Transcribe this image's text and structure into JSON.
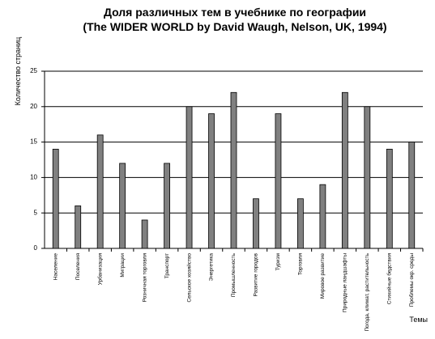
{
  "chart_data": {
    "type": "bar",
    "title": "Доля различных тем в учебнике по географии",
    "subtitle": "(The WIDER WORLD by David Waugh, Nelson, UK, 1994)",
    "y_label": "Количество страниц",
    "x_label": "Темы",
    "categories": [
      "Население",
      "Поселения",
      "Урбанизация",
      "Миграции",
      "Розничная торговля",
      "Транспорт",
      "Сельское хозяйство",
      "Энергетика",
      "Промышленность",
      "Развитие городов",
      "Туризм",
      "Торговля",
      "Мировое развитие",
      "Природные ландшафты",
      "Погода, климат, растительность",
      "Стихийные бедствия",
      "Проблемы окр. среды"
    ],
    "values": [
      14,
      6,
      16,
      12,
      4,
      12,
      20,
      19,
      22,
      7,
      19,
      7,
      9,
      22,
      20,
      14,
      15
    ],
    "color": "#808080",
    "ylim": [
      0,
      25
    ],
    "yticks": [
      0,
      5,
      10,
      15,
      20,
      25
    ],
    "grid": true
  }
}
